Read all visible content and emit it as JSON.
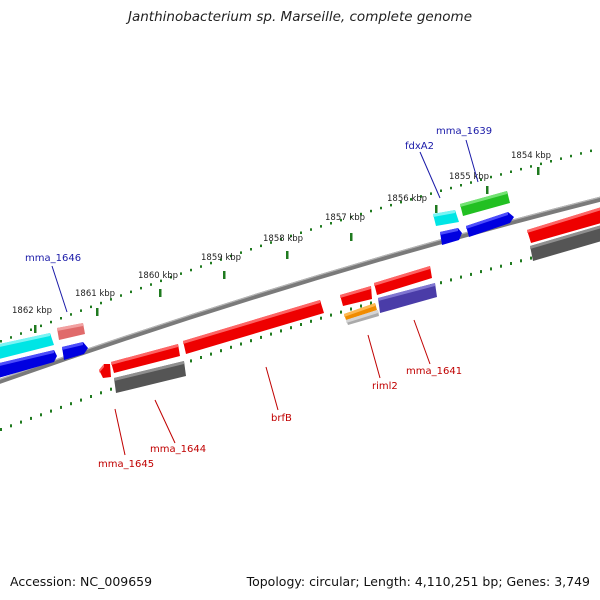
{
  "title": "Janthinobacterium sp. Marseille, complete genome",
  "footer": {
    "accession_label": "Accession:",
    "accession": "NC_009659",
    "topology_label": "Topology:",
    "topology": "circular",
    "length_label": "Length:",
    "length": "4,110,251 bp",
    "genes_label": "Genes:",
    "genes": "3,749"
  },
  "colors": {
    "backbone": "#7a7a7a",
    "scale_tick": "#1f7a1f",
    "forward_label": "#1a1aa8",
    "reverse_label": "#c00000"
  },
  "scale_ticks": [
    {
      "kbp": 1854,
      "label": "1854 kbp"
    },
    {
      "kbp": 1855,
      "label": "1855 kbp"
    },
    {
      "kbp": 1856,
      "label": "1856 kbp"
    },
    {
      "kbp": 1857,
      "label": "1857 kbp"
    },
    {
      "kbp": 1858,
      "label": "1858 kbp"
    },
    {
      "kbp": 1859,
      "label": "1859 kbp"
    },
    {
      "kbp": 1860,
      "label": "1860 kbp"
    },
    {
      "kbp": 1861,
      "label": "1861 kbp"
    },
    {
      "kbp": 1862,
      "label": "1862 kbp"
    }
  ],
  "gene_labels": [
    {
      "text": "mma_1646",
      "strand": "forward"
    },
    {
      "text": "fdxA2",
      "strand": "forward"
    },
    {
      "text": "mma_1639",
      "strand": "forward"
    },
    {
      "text": "mma_1645",
      "strand": "reverse"
    },
    {
      "text": "mma_1644",
      "strand": "reverse"
    },
    {
      "text": "brfB",
      "strand": "reverse"
    },
    {
      "text": "riml2",
      "strand": "reverse"
    },
    {
      "text": "mma_1641",
      "strand": "reverse"
    }
  ]
}
